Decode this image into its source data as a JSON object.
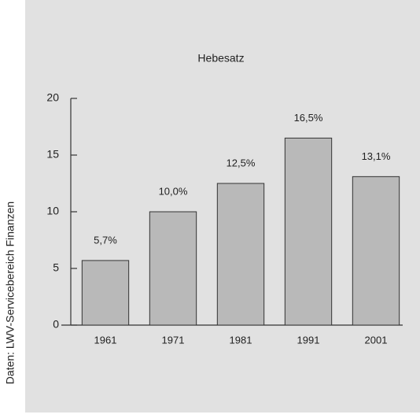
{
  "chart_data": {
    "type": "bar",
    "title": "Hebesatz",
    "source": "Daten: LWV-Servicebereich Finanzen",
    "categories": [
      "1961",
      "1971",
      "1981",
      "1991",
      "2001"
    ],
    "values": [
      5.7,
      10.0,
      12.5,
      16.5,
      13.1
    ],
    "value_labels": [
      "5,7%",
      "10,0%",
      "12,5%",
      "16,5%",
      "13,1%"
    ],
    "color": "#b9b9b9",
    "ylim": [
      0,
      20
    ],
    "yticks": [
      0,
      5,
      10,
      15,
      20
    ],
    "grid": false
  }
}
